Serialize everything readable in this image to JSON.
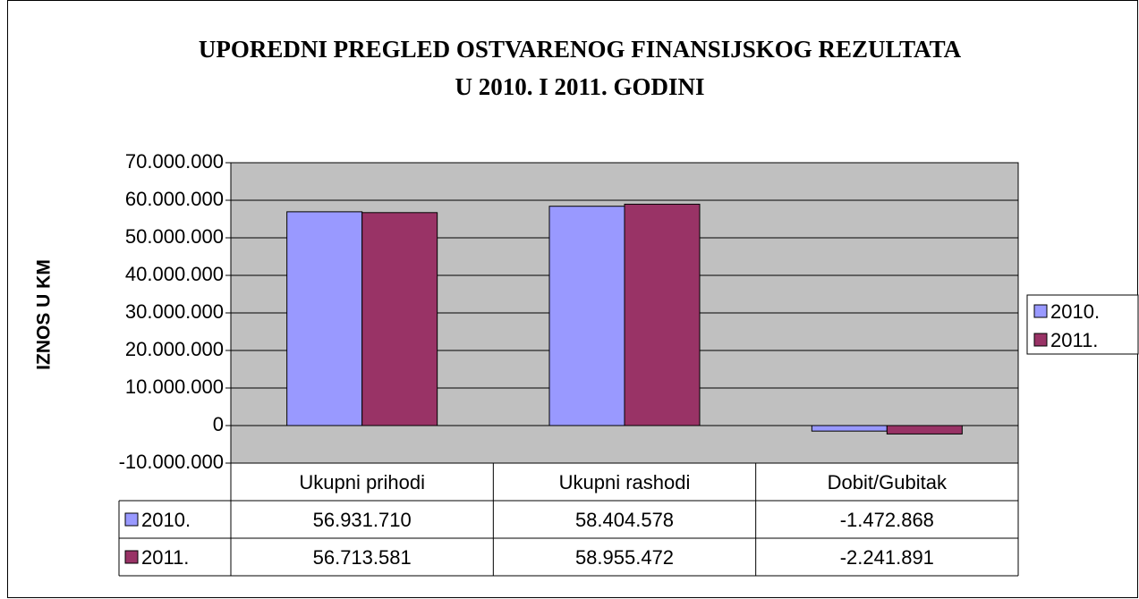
{
  "chart_data": {
    "type": "bar",
    "title": [
      "UPOREDNI PREGLED OSTVARENOG FINANSIJSKOG REZULTATA",
      "U 2010. I 2011. GODINI"
    ],
    "y_label": "IZNOS U KM",
    "categories": [
      "Ukupni prihodi",
      "Ukupni rashodi",
      "Dobit/Gubitak"
    ],
    "series": [
      {
        "name": "2010.",
        "color": "#9999ff",
        "values": [
          56931710,
          58404578,
          -1472868
        ],
        "value_labels": [
          "56.931.710",
          "58.404.578",
          "-1.472.868"
        ]
      },
      {
        "name": "2011.",
        "color": "#993366",
        "values": [
          56713581,
          58955472,
          -2241891
        ],
        "value_labels": [
          "56.713.581",
          "58.955.472",
          "-2.241.891"
        ]
      }
    ],
    "ylim": [
      -10000000,
      70000000
    ],
    "yticks": [
      {
        "value": -10000000,
        "label": "-10.000.000"
      },
      0,
      {
        "value": 10000000,
        "label": "10.000.000"
      },
      {
        "value": 20000000,
        "label": "20.000.000"
      },
      {
        "value": 30000000,
        "label": "30.000.000"
      },
      {
        "value": 40000000,
        "label": "40.000.000"
      },
      {
        "value": 50000000,
        "label": "50.000.000"
      },
      {
        "value": 60000000,
        "label": "60.000.000"
      },
      {
        "value": 70000000,
        "label": "70.000.000"
      }
    ],
    "grid": true,
    "legend": "right",
    "plot_background": "#c0c0c0"
  }
}
